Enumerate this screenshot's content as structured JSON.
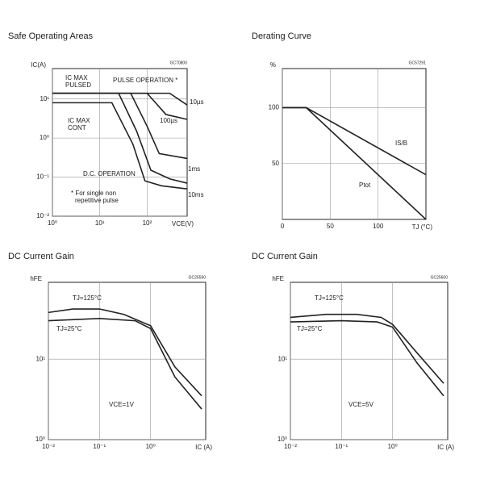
{
  "chart_data": [
    {
      "type": "line",
      "title": "Safe Operating Areas",
      "ylabel": "IC(A)",
      "xlabel": "VCE(V)",
      "xscale": "log",
      "yscale": "log",
      "xlim": [
        1,
        700
      ],
      "ylim": [
        0.01,
        60
      ],
      "grid": true,
      "xticks": [
        {
          "value": 1,
          "label": "10⁰"
        },
        {
          "value": 10,
          "label": "10¹"
        },
        {
          "value": 100,
          "label": "10²"
        }
      ],
      "yticks": [
        {
          "value": 0.01,
          "label": "10⁻²"
        },
        {
          "value": 0.1,
          "label": "10⁻¹"
        },
        {
          "value": 1,
          "label": "10⁰"
        },
        {
          "value": 10,
          "label": "10¹"
        }
      ],
      "series": [
        {
          "name": "10µs",
          "color": "#222222",
          "x": [
            1,
            300,
            700
          ],
          "values": [
            14,
            14,
            7
          ]
        },
        {
          "name": "100µs",
          "color": "#222222",
          "x": [
            1,
            100,
            250,
            700
          ],
          "values": [
            14,
            14,
            4,
            3
          ]
        },
        {
          "name": "1ms",
          "color": "#222222",
          "x": [
            1,
            45,
            100,
            180,
            700
          ],
          "values": [
            14,
            14,
            2,
            0.4,
            0.3
          ]
        },
        {
          "name": "10ms",
          "color": "#222222",
          "x": [
            1,
            25,
            60,
            120,
            300,
            700
          ],
          "values": [
            14,
            14,
            1.5,
            0.15,
            0.09,
            0.07
          ]
        },
        {
          "name": "D.C. OPERATION",
          "color": "#222222",
          "x": [
            1,
            18,
            50,
            90,
            200,
            700
          ],
          "values": [
            8,
            8,
            0.7,
            0.08,
            0.06,
            0.05
          ]
        }
      ],
      "annotations": [
        "IC MAX",
        "PULSED",
        "PULSE OPERATION *",
        "IC MAX",
        "CONT",
        "* For single non",
        "repetitive pulse",
        "GC70800"
      ]
    },
    {
      "type": "line",
      "title": "Derating Curve",
      "ylabel": "%",
      "xlabel": "TJ (°C)",
      "xscale": "linear",
      "yscale": "linear",
      "xlim": [
        0,
        150
      ],
      "ylim": [
        0,
        135
      ],
      "grid": true,
      "xticks": [
        0,
        50,
        100
      ],
      "yticks": [
        50,
        100
      ],
      "series": [
        {
          "name": "IS/B",
          "color": "#222222",
          "x": [
            0,
            25,
            150
          ],
          "values": [
            100,
            100,
            40
          ]
        },
        {
          "name": "Ptot",
          "color": "#222222",
          "x": [
            0,
            25,
            150
          ],
          "values": [
            100,
            100,
            0
          ]
        }
      ],
      "annotations": [
        "GC57291"
      ]
    },
    {
      "type": "line",
      "title": "DC Current Gain",
      "ylabel": "hFE",
      "xlabel": "IC (A)",
      "xscale": "log",
      "yscale": "log",
      "xlim": [
        0.01,
        12
      ],
      "ylim": [
        1,
        90
      ],
      "grid": true,
      "xticks": [
        {
          "value": 0.01,
          "label": "10⁻²"
        },
        {
          "value": 0.1,
          "label": "10⁻¹"
        },
        {
          "value": 1,
          "label": "10⁰"
        }
      ],
      "yticks": [
        {
          "value": 1,
          "label": "10⁰"
        },
        {
          "value": 10,
          "label": "10¹"
        }
      ],
      "series": [
        {
          "name": "TJ=125°C",
          "color": "#222222",
          "x": [
            0.01,
            0.03,
            0.1,
            0.3,
            1,
            3,
            10
          ],
          "values": [
            38,
            42,
            42,
            36,
            26,
            8,
            3.5
          ]
        },
        {
          "name": "TJ=25°C",
          "color": "#222222",
          "x": [
            0.01,
            0.1,
            0.5,
            1,
            3,
            10
          ],
          "values": [
            30,
            32,
            30,
            24,
            6,
            2.4
          ]
        }
      ],
      "annotations": [
        "VCE=1V",
        "GC25590"
      ]
    },
    {
      "type": "line",
      "title": "DC Current Gain",
      "ylabel": "hFE",
      "xlabel": "IC (A)",
      "xscale": "log",
      "yscale": "log",
      "xlim": [
        0.01,
        12
      ],
      "ylim": [
        1,
        90
      ],
      "grid": true,
      "xticks": [
        {
          "value": 0.01,
          "label": "10⁻²"
        },
        {
          "value": 0.1,
          "label": "10⁻¹"
        },
        {
          "value": 1,
          "label": "10⁰"
        }
      ],
      "yticks": [
        {
          "value": 1,
          "label": "10⁰"
        },
        {
          "value": 10,
          "label": "10¹"
        }
      ],
      "series": [
        {
          "name": "TJ=125°C",
          "color": "#222222",
          "x": [
            0.01,
            0.05,
            0.2,
            0.6,
            1,
            3,
            10
          ],
          "values": [
            33,
            36,
            36,
            33,
            27,
            12,
            5
          ]
        },
        {
          "name": "TJ=25°C",
          "color": "#222222",
          "x": [
            0.01,
            0.1,
            0.5,
            1,
            3,
            10
          ],
          "values": [
            29,
            30,
            29,
            25,
            9,
            3.5
          ]
        }
      ],
      "annotations": [
        "VCE=5V",
        "GC25600"
      ]
    }
  ]
}
